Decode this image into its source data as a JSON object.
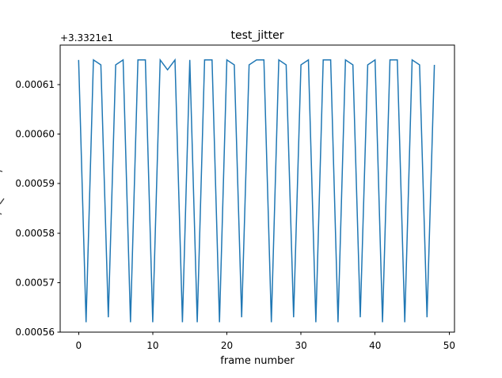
{
  "colors": {
    "background": "#ffffff",
    "text": "#000000",
    "line": "#1f77b4",
    "spine": "#000000"
  },
  "chart_data": {
    "type": "line",
    "title": "test_jitter",
    "xlabel": "frame number",
    "y_offset_text": "+3.3321e1",
    "grid": false,
    "legend": "none",
    "line_color": "#1f77b4",
    "xlim": [
      -2.49,
      50.71
    ],
    "ylim": [
      0.00056,
      0.000618
    ],
    "x_tick_values": [
      0,
      10,
      20,
      30,
      40,
      50
    ],
    "x_tick_labels": [
      "0",
      "10",
      "20",
      "30",
      "40",
      "50"
    ],
    "y_tick_values": [
      0.00056,
      0.00057,
      0.00058,
      0.00059,
      0.0006,
      0.00061
    ],
    "y_tick_labels": [
      "0.00056",
      "0.00057",
      "0.00058",
      "0.00059",
      "0.00060",
      "0.00061"
    ],
    "x": [
      0,
      1,
      2,
      3,
      4,
      5,
      6,
      7,
      8,
      9,
      10,
      11,
      12,
      13,
      14,
      15,
      16,
      17,
      18,
      19,
      20,
      21,
      22,
      23,
      24,
      25,
      26,
      27,
      28,
      29,
      30,
      31,
      32,
      33,
      34,
      35,
      36,
      37,
      38,
      39,
      40,
      41,
      42,
      43,
      44,
      45,
      46,
      47,
      48
    ],
    "y": [
      0.000615,
      0.000562,
      0.000615,
      0.000614,
      0.000563,
      0.000614,
      0.000615,
      0.000562,
      0.000615,
      0.000615,
      0.000562,
      0.000615,
      0.000613,
      0.000615,
      0.000562,
      0.000615,
      0.000562,
      0.000615,
      0.000615,
      0.000562,
      0.000615,
      0.000614,
      0.000563,
      0.000614,
      0.000615,
      0.000615,
      0.000562,
      0.000615,
      0.000614,
      0.000563,
      0.000614,
      0.000615,
      0.000562,
      0.000615,
      0.000615,
      0.000562,
      0.000615,
      0.000614,
      0.000563,
      0.000614,
      0.000615,
      0.000562,
      0.000615,
      0.000615,
      0.000562,
      0.000615,
      0.000614,
      0.000563,
      0.000614
    ]
  }
}
